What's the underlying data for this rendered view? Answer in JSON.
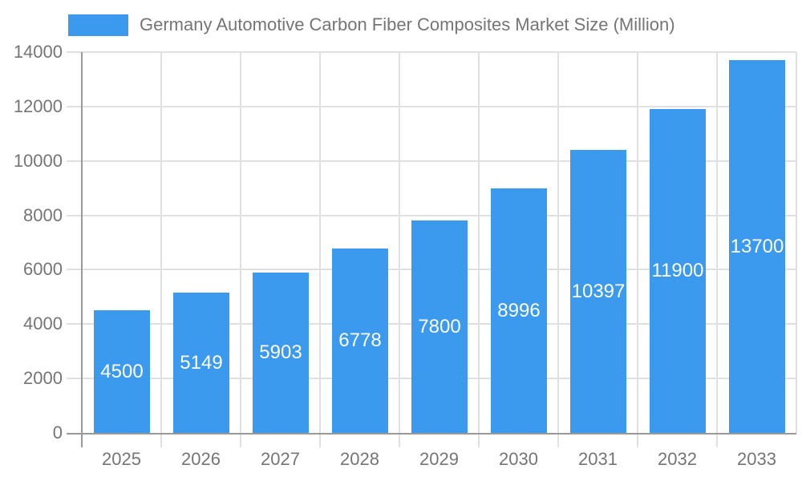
{
  "chart_data": {
    "type": "bar",
    "title": "Germany Automotive Carbon Fiber Composites Market Size (Million)",
    "legend": {
      "position": "top",
      "label": "Germany Automotive Carbon Fiber Composites Market Size (Million)"
    },
    "categories": [
      "2025",
      "2026",
      "2027",
      "2028",
      "2029",
      "2030",
      "2031",
      "2032",
      "2033"
    ],
    "values": [
      4500,
      5149,
      5903,
      6778,
      7800,
      8996,
      10397,
      11900,
      13700
    ],
    "xlabel": "",
    "ylabel": "",
    "ylim": [
      0,
      14000
    ],
    "yticks": [
      0,
      2000,
      4000,
      6000,
      8000,
      10000,
      12000,
      14000
    ],
    "grid": true,
    "bar_labels_inside": true,
    "colors": {
      "bar": "#3B99EE",
      "bar_label": "#FFFFFF",
      "axis_label": "#757575",
      "grid_line": "#E0E0E0",
      "axis_line": "#999999",
      "background": "#FFFFFF"
    }
  }
}
